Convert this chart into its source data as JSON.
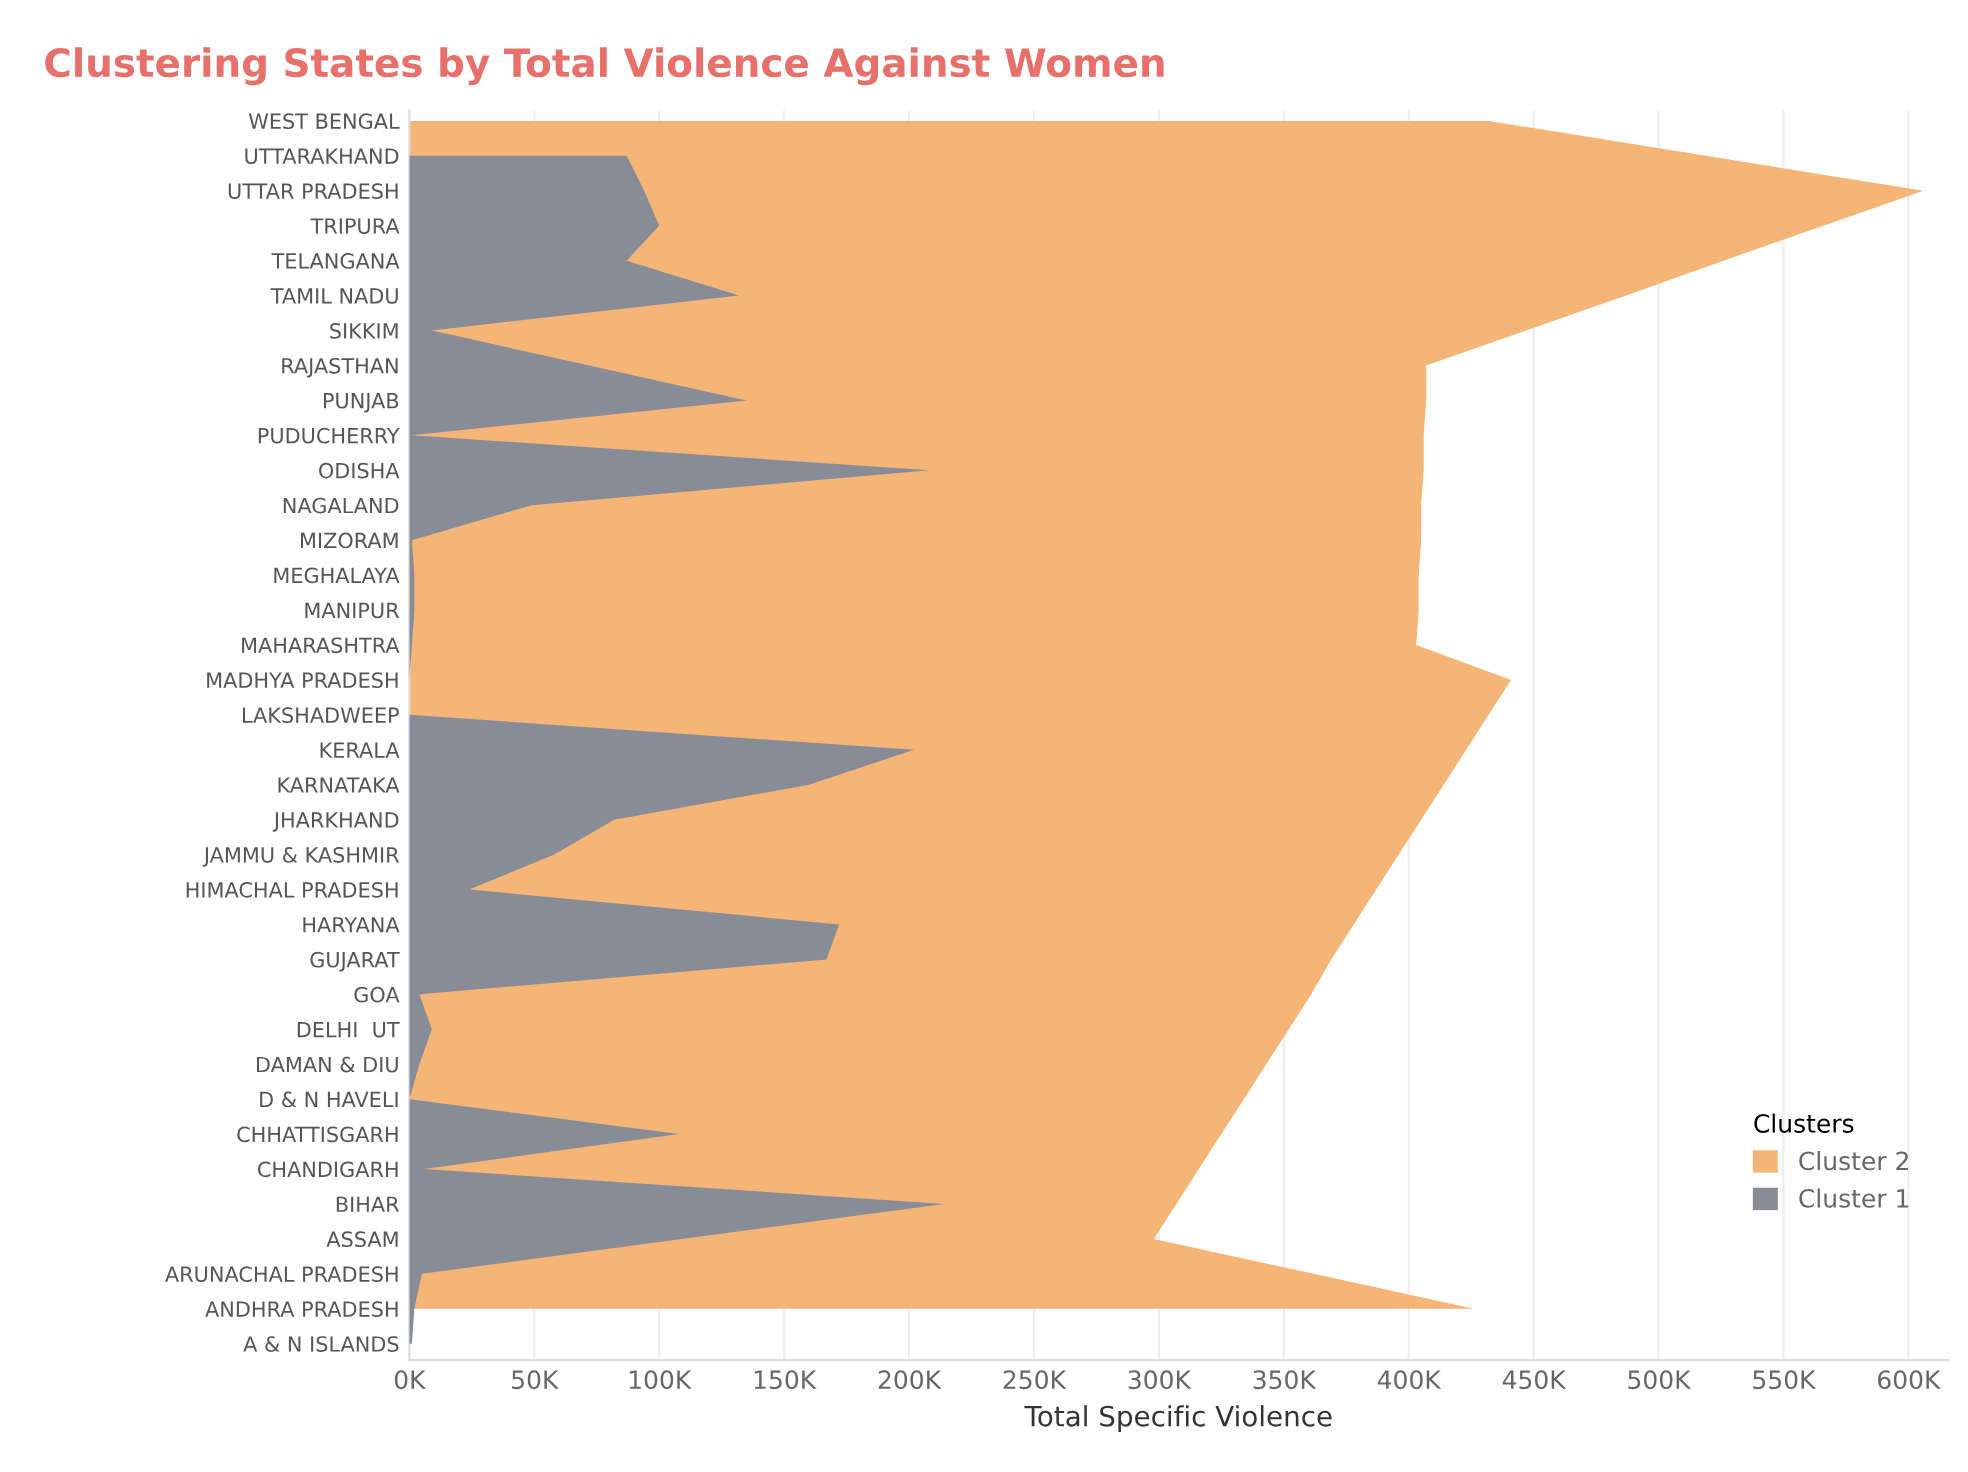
{
  "chart_data": {
    "type": "area",
    "orientation": "horizontal",
    "title": "Clustering States by Total Violence Against Women",
    "xlabel": "Total Specific Violence",
    "categories": [
      "WEST BENGAL",
      "UTTARAKHAND",
      "UTTAR PRADESH",
      "TRIPURA",
      "TELANGANA",
      "TAMIL NADU",
      "SIKKIM",
      "RAJASTHAN",
      "PUNJAB",
      "PUDUCHERRY",
      "ODISHA",
      "NAGALAND",
      "MIZORAM",
      "MEGHALAYA",
      "MANIPUR",
      "MAHARASHTRA",
      "MADHYA PRADESH",
      "LAKSHADWEEP",
      "KERALA",
      "KARNATAKA",
      "JHARKHAND",
      "JAMMU & KASHMIR",
      "HIMACHAL PRADESH",
      "HARYANA",
      "GUJARAT",
      "GOA",
      "DELHI  UT",
      "DAMAN & DIU",
      "D & N HAVELI",
      "CHHATTISGARH",
      "CHANDIGARH",
      "BIHAR",
      "ASSAM",
      "ARUNACHAL PRADESH",
      "ANDHRA PRADESH",
      "A & N ISLANDS"
    ],
    "series": [
      {
        "name": "Cluster 2",
        "color": "#f4b577",
        "values": [
          432000,
          519000,
          606000,
          566000,
          526000,
          487000,
          447000,
          407000,
          407000,
          406000,
          406000,
          405000,
          405000,
          404000,
          404000,
          403000,
          441000,
          432000,
          423000,
          414000,
          405000,
          396000,
          387000,
          378000,
          369000,
          361000,
          352000,
          343000,
          334000,
          325000,
          316000,
          307000,
          298000,
          362000,
          426000,
          null
        ]
      },
      {
        "name": "Cluster 1",
        "color": "#878c96",
        "values": [
          null,
          87000,
          94000,
          100000,
          87000,
          132000,
          9000,
          72000,
          135000,
          1000,
          208000,
          49000,
          1000,
          2000,
          2000,
          1000,
          0,
          0,
          202000,
          160000,
          82000,
          58000,
          24000,
          172000,
          167000,
          4000,
          9000,
          4000,
          0,
          108000,
          6000,
          214000,
          109000,
          5000,
          2000,
          1000
        ]
      }
    ],
    "xlim": [
      0,
      616000
    ],
    "xticks": [
      {
        "value": 0,
        "label": "0K"
      },
      {
        "value": 50000,
        "label": "50K"
      },
      {
        "value": 100000,
        "label": "100K"
      },
      {
        "value": 150000,
        "label": "150K"
      },
      {
        "value": 200000,
        "label": "200K"
      },
      {
        "value": 250000,
        "label": "250K"
      },
      {
        "value": 300000,
        "label": "300K"
      },
      {
        "value": 350000,
        "label": "350K"
      },
      {
        "value": 400000,
        "label": "400K"
      },
      {
        "value": 450000,
        "label": "450K"
      },
      {
        "value": 500000,
        "label": "500K"
      },
      {
        "value": 550000,
        "label": "550K"
      },
      {
        "value": 600000,
        "label": "600K"
      }
    ],
    "grid": "x",
    "legend": "bottom right",
    "legend_title": "Clusters"
  }
}
